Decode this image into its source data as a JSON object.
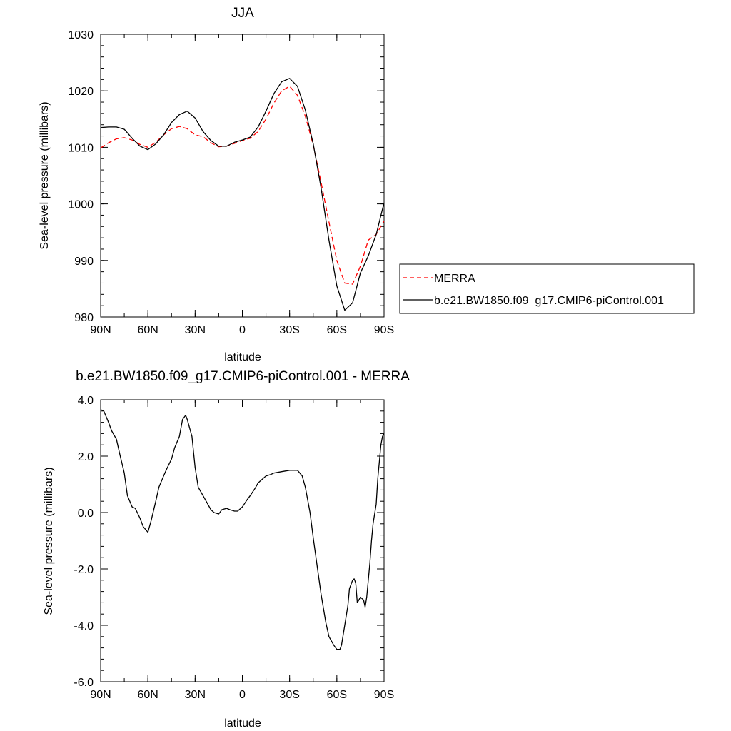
{
  "chart_data": [
    {
      "type": "line",
      "title": "JJA",
      "xlabel": "latitude",
      "ylabel": "Sea-level pressure (millibars)",
      "xlim": [
        -90,
        90
      ],
      "ylim": [
        980,
        1030
      ],
      "x_ticks": [
        {
          "value": -90,
          "label": "90N"
        },
        {
          "value": -60,
          "label": "60N"
        },
        {
          "value": -30,
          "label": "30N"
        },
        {
          "value": 0,
          "label": "0"
        },
        {
          "value": 30,
          "label": "30S"
        },
        {
          "value": 60,
          "label": "60S"
        },
        {
          "value": 90,
          "label": "90S"
        }
      ],
      "y_ticks": [
        {
          "value": 980,
          "label": "980"
        },
        {
          "value": 990,
          "label": "990"
        },
        {
          "value": 1000,
          "label": "1000"
        },
        {
          "value": 1010,
          "label": "1010"
        },
        {
          "value": 1020,
          "label": "1020"
        },
        {
          "value": 1030,
          "label": "1030"
        }
      ],
      "legend_position": "right",
      "series": [
        {
          "name": "MERRA",
          "color": "#ff0000",
          "dashed": true,
          "x": [
            -90,
            -85,
            -80,
            -75,
            -70,
            -65,
            -60,
            -55,
            -50,
            -45,
            -40,
            -35,
            -30,
            -25,
            -20,
            -15,
            -10,
            -5,
            0,
            5,
            10,
            15,
            20,
            25,
            30,
            35,
            40,
            45,
            50,
            55,
            60,
            65,
            70,
            75,
            80,
            85,
            90
          ],
          "values": [
            1009.9,
            1010.8,
            1011.5,
            1011.7,
            1011.3,
            1010.5,
            1010.0,
            1010.9,
            1012.2,
            1013.3,
            1013.7,
            1013.3,
            1012.2,
            1011.9,
            1010.8,
            1010.1,
            1010.2,
            1010.7,
            1011.2,
            1011.6,
            1012.8,
            1015.0,
            1017.8,
            1020.0,
            1020.8,
            1019.2,
            1015.5,
            1010.4,
            1003.8,
            996.8,
            990.0,
            986.0,
            985.8,
            989.0,
            993.6,
            994.6,
            997.0
          ]
        },
        {
          "name": "b.e21.BW1850.f09_g17.CMIP6-piControl.001",
          "color": "#000000",
          "dashed": false,
          "x": [
            -90,
            -85,
            -80,
            -75,
            -70,
            -65,
            -60,
            -55,
            -50,
            -45,
            -40,
            -35,
            -30,
            -25,
            -20,
            -15,
            -10,
            -5,
            0,
            5,
            10,
            15,
            20,
            25,
            30,
            35,
            40,
            45,
            50,
            55,
            60,
            65,
            70,
            75,
            80,
            85,
            90
          ],
          "values": [
            1013.5,
            1013.6,
            1013.6,
            1013.2,
            1011.6,
            1010.2,
            1009.6,
            1010.6,
            1012.2,
            1014.4,
            1015.8,
            1016.4,
            1015.2,
            1012.8,
            1011.2,
            1010.2,
            1010.2,
            1010.9,
            1011.3,
            1011.8,
            1013.6,
            1016.4,
            1019.5,
            1021.6,
            1022.2,
            1020.8,
            1016.6,
            1010.6,
            1002.8,
            993.6,
            985.5,
            981.2,
            982.5,
            987.8,
            990.8,
            994.6,
            1000.2
          ]
        }
      ]
    },
    {
      "type": "line",
      "title": "b.e21.BW1850.f09_g17.CMIP6-piControl.001 - MERRA",
      "xlabel": "latitude",
      "ylabel": "Sea-level pressure (millibars)",
      "xlim": [
        -90,
        90
      ],
      "ylim": [
        -6,
        4
      ],
      "x_ticks": [
        {
          "value": -90,
          "label": "90N"
        },
        {
          "value": -60,
          "label": "60N"
        },
        {
          "value": -30,
          "label": "30N"
        },
        {
          "value": 0,
          "label": "0"
        },
        {
          "value": 30,
          "label": "30S"
        },
        {
          "value": 60,
          "label": "60S"
        },
        {
          "value": 90,
          "label": "90S"
        }
      ],
      "y_ticks": [
        {
          "value": -6,
          "label": "-6.0"
        },
        {
          "value": -4,
          "label": "-4.0"
        },
        {
          "value": -2,
          "label": "-2.0"
        },
        {
          "value": 0,
          "label": "0.0"
        },
        {
          "value": 2,
          "label": "2.0"
        },
        {
          "value": 4,
          "label": "4.0"
        }
      ],
      "series": [
        {
          "color": "#000000",
          "dashed": false,
          "x": [
            -90,
            -88,
            -85,
            -83,
            -80,
            -78,
            -75,
            -73,
            -70,
            -68,
            -65,
            -63,
            -60,
            -58,
            -55,
            -53,
            -50,
            -48,
            -45,
            -43,
            -40,
            -38,
            -36,
            -35,
            -32,
            -30,
            -28,
            -25,
            -22,
            -20,
            -18,
            -15,
            -13,
            -10,
            -8,
            -5,
            -3,
            0,
            3,
            5,
            8,
            10,
            13,
            15,
            18,
            20,
            25,
            30,
            35,
            38,
            40,
            43,
            45,
            48,
            50,
            53,
            55,
            58,
            60,
            62,
            63,
            65,
            67,
            68,
            70,
            71,
            72,
            73,
            75,
            77,
            78,
            79,
            80,
            81,
            82,
            83,
            85,
            86,
            88,
            89,
            90
          ],
          "values": [
            3.65,
            3.6,
            3.2,
            2.9,
            2.6,
            2.1,
            1.4,
            0.6,
            0.2,
            0.15,
            -0.2,
            -0.5,
            -0.7,
            -0.3,
            0.4,
            0.9,
            1.3,
            1.55,
            1.9,
            2.3,
            2.7,
            3.3,
            3.45,
            3.3,
            2.7,
            1.6,
            0.9,
            0.6,
            0.3,
            0.1,
            0.0,
            -0.05,
            0.1,
            0.15,
            0.1,
            0.05,
            0.05,
            0.2,
            0.45,
            0.6,
            0.85,
            1.05,
            1.2,
            1.3,
            1.35,
            1.4,
            1.45,
            1.5,
            1.5,
            1.3,
            0.9,
            0.0,
            -0.9,
            -2.1,
            -2.9,
            -3.9,
            -4.4,
            -4.7,
            -4.85,
            -4.85,
            -4.7,
            -4.0,
            -3.3,
            -2.7,
            -2.4,
            -2.35,
            -2.5,
            -3.2,
            -3.0,
            -3.1,
            -3.35,
            -3.0,
            -2.4,
            -1.8,
            -1.0,
            -0.4,
            0.3,
            1.2,
            2.4,
            2.7,
            2.8
          ]
        }
      ]
    }
  ]
}
